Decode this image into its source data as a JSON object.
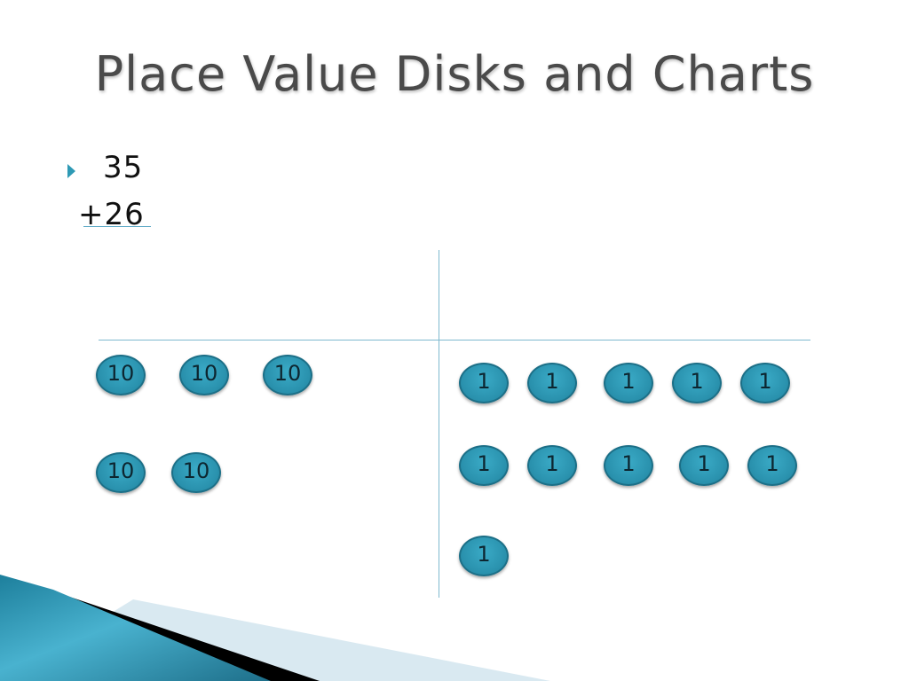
{
  "slide": {
    "title": "Place Value Disks and Charts",
    "problem": {
      "line1": "35",
      "line2": "+26"
    },
    "tens_disks": [
      "10",
      "10",
      "10",
      "10",
      "10"
    ],
    "ones_disks": [
      "1",
      "1",
      "1",
      "1",
      "1",
      "1",
      "1",
      "1",
      "1",
      "1",
      "1"
    ],
    "colors": {
      "accent": "#2e9ab5",
      "disk_fill": "#2a92ae",
      "chart_lines": "#7fb9cf"
    }
  }
}
